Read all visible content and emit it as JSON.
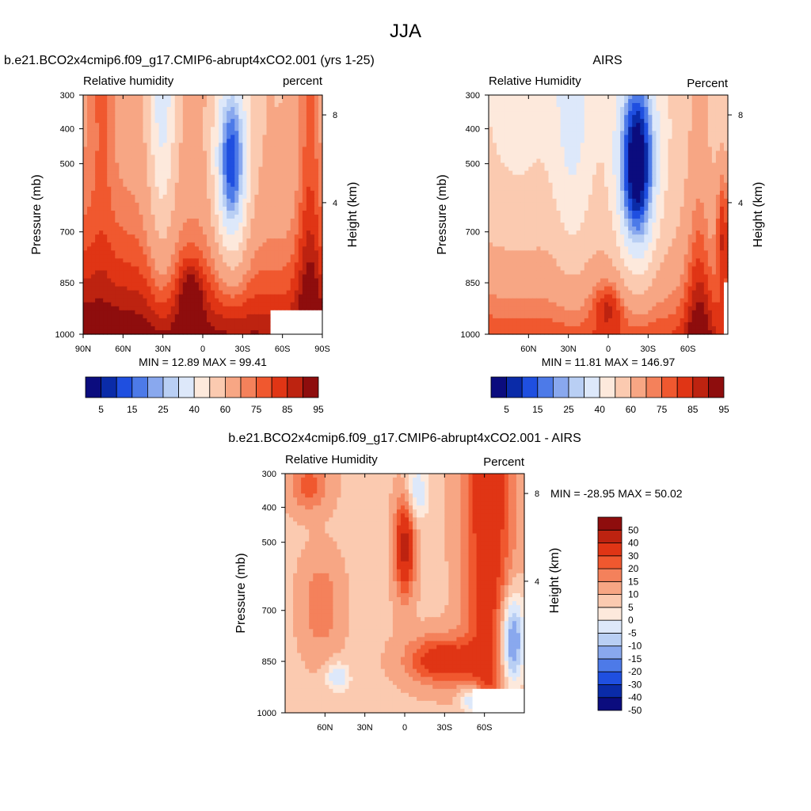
{
  "page_title": "JJA",
  "colors": {
    "abs_scale": [
      "#0b0c7e",
      "#0a2ba8",
      "#1f4fe0",
      "#4d7ae8",
      "#89a8ee",
      "#b9cff4",
      "#dde8fa",
      "#fde9dc",
      "#fbcab0",
      "#f7a684",
      "#f4815b",
      "#f0582f",
      "#e03515",
      "#bd2310",
      "#8e0d0d"
    ],
    "diff_scale": [
      "#0b0c7e",
      "#0a2ba8",
      "#1f4fe0",
      "#4d7ae8",
      "#89a8ee",
      "#b9cff4",
      "#dde8fa",
      "#fde9dc",
      "#fbcab0",
      "#f7a684",
      "#f4815b",
      "#f0582f",
      "#e03515",
      "#bd2310",
      "#8e0d0d"
    ]
  },
  "chart_data": [
    {
      "type": "heatmap",
      "title": "b.e21.BCO2x4cmip6.f09_g17.CMIP6-abrupt4xCO2.001 (yrs 1-25)",
      "left_label": "Relative humidity",
      "right_label": "percent",
      "ylabel": "Pressure (mb)",
      "ylabel_right": "Height (km)",
      "y_ticks": [
        "300",
        "400",
        "500",
        "700",
        "850",
        "1000"
      ],
      "y_right_ticks": [
        "8",
        "4"
      ],
      "x_ticks": [
        "90N",
        "60N",
        "30N",
        "0",
        "30S",
        "60S",
        "90S"
      ],
      "stats": "MIN =  12.89  MAX =  99.41",
      "levels": [
        5,
        10,
        15,
        20,
        25,
        30,
        40,
        50,
        60,
        70,
        75,
        80,
        85,
        90,
        95
      ],
      "colorbar_labels": [
        "5",
        "15",
        "25",
        "40",
        "60",
        "75",
        "85",
        "95"
      ]
    },
    {
      "type": "heatmap",
      "title": "AIRS",
      "left_label": "Relative Humidity",
      "right_label": "Percent",
      "ylabel": "Pressure (mb)",
      "ylabel_right": "Height (km)",
      "y_ticks": [
        "300",
        "400",
        "500",
        "700",
        "850",
        "1000"
      ],
      "y_right_ticks": [
        "8",
        "4"
      ],
      "x_ticks": [
        "60N",
        "30N",
        "0",
        "30S",
        "60S"
      ],
      "stats": "MIN =  11.81  MAX =  146.97",
      "levels": [
        5,
        10,
        15,
        20,
        25,
        30,
        40,
        50,
        60,
        70,
        75,
        80,
        85,
        90,
        95
      ],
      "colorbar_labels": [
        "5",
        "15",
        "25",
        "40",
        "60",
        "75",
        "85",
        "95"
      ]
    },
    {
      "type": "heatmap",
      "title": "b.e21.BCO2x4cmip6.f09_g17.CMIP6-abrupt4xCO2.001 - AIRS",
      "left_label": "Relative Humidity",
      "right_label": "Percent",
      "ylabel": "Pressure (mb)",
      "ylabel_right": "Height (km)",
      "y_ticks": [
        "300",
        "400",
        "500",
        "700",
        "850",
        "1000"
      ],
      "y_right_ticks": [
        "8",
        "4"
      ],
      "x_ticks": [
        "60N",
        "30N",
        "0",
        "30S",
        "60S"
      ],
      "stats": "MIN = -28.95  MAX =  50.02",
      "levels": [
        -50,
        -40,
        -30,
        -20,
        -15,
        -10,
        -5,
        0,
        5,
        10,
        15,
        20,
        30,
        40,
        50
      ],
      "colorbar_labels": [
        "50",
        "40",
        "30",
        "20",
        "15",
        "10",
        "5",
        "0",
        "-5",
        "-10",
        "-15",
        "-20",
        "-30",
        "-40",
        "-50"
      ]
    }
  ]
}
